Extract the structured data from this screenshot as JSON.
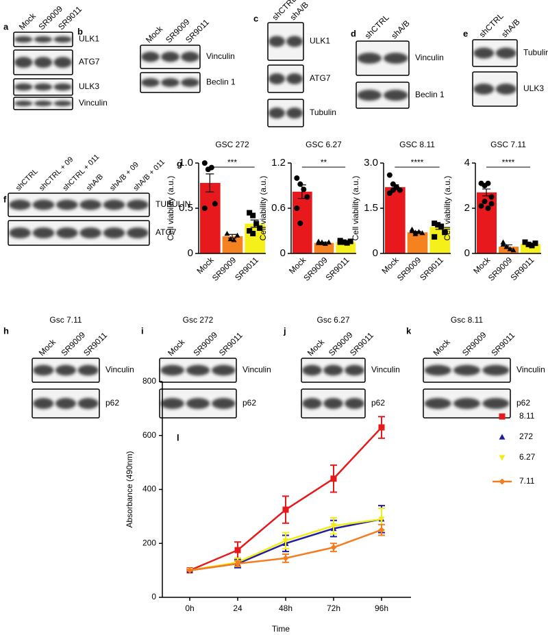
{
  "blots": [
    {
      "letter": "a",
      "lanes": [
        "Mock",
        "SR9009",
        "SR9011"
      ],
      "bands": [
        "ULK1",
        "ATG7",
        "ULK3",
        "Vinculin"
      ]
    },
    {
      "letter": "b",
      "lanes": [
        "Mock",
        "SR9009",
        "SR9011"
      ],
      "bands": [
        "Vinculin",
        "Beclin 1"
      ]
    },
    {
      "letter": "c",
      "lanes": [
        "shCTRL",
        "shA/B"
      ],
      "bands": [
        "ULK1",
        "ATG7",
        "Tubulin"
      ]
    },
    {
      "letter": "d",
      "lanes": [
        "shCTRL",
        "shA/B"
      ],
      "bands": [
        "Vinculin",
        "Beclin 1"
      ]
    },
    {
      "letter": "e",
      "lanes": [
        "shCTRL",
        "shA/B"
      ],
      "bands": [
        "Tubulin",
        "ULK3"
      ]
    },
    {
      "letter": "f",
      "lanes": [
        "shCTRL",
        "shCTRL + 09",
        "shCTRL + 011",
        "shA/B",
        "shA/B + 09",
        "shA/B + 011"
      ],
      "bands": [
        "TUBULIN",
        "ATG7"
      ]
    },
    {
      "letter": "h",
      "title": "Gsc 7.11",
      "lanes": [
        "Mock",
        "SR9009",
        "SR9011"
      ],
      "bands": [
        "Vinculin",
        "p62"
      ]
    },
    {
      "letter": "i",
      "title": "Gsc 272",
      "lanes": [
        "Mock",
        "SR9009",
        "SR9011"
      ],
      "bands": [
        "Vinculin",
        "p62"
      ]
    },
    {
      "letter": "j",
      "title": "Gsc 6.27",
      "lanes": [
        "Mock",
        "SR9009",
        "SR9011"
      ],
      "bands": [
        "Vinculin",
        "p62"
      ]
    },
    {
      "letter": "k",
      "title": "Gsc 8.11",
      "lanes": [
        "Mock",
        "SR9009",
        "SR9011"
      ],
      "bands": [
        "Vinculin",
        "p62"
      ]
    }
  ],
  "chart_data": [
    {
      "type": "bar",
      "letter": "g",
      "title": "GSC 272",
      "ylabel": "Cell viability (a.u.)",
      "categories": [
        "Mock",
        "SR9009",
        "SR9011"
      ],
      "values": [
        0.78,
        0.19,
        0.33
      ],
      "errors": [
        0.1,
        0.02,
        0.04
      ],
      "colors": [
        "#e8191c",
        "#f5821f",
        "#f5f01a"
      ],
      "points": [
        [
          1.0,
          0.93,
          0.95,
          0.55,
          0.5
        ],
        [
          0.22,
          0.16,
          0.15,
          0.2
        ],
        [
          0.45,
          0.42,
          0.33,
          0.28,
          0.25,
          0.22
        ]
      ],
      "significance": "***",
      "ylim": [
        0,
        1
      ],
      "yticks": [
        0,
        0.5,
        {
          "value": 1,
          "label": "1.0"
        }
      ]
    },
    {
      "type": "bar",
      "title": "GSC 6.27",
      "ylabel": "Cell viability (a.u.)",
      "categories": [
        "Mock",
        "SR9009",
        "SR9011"
      ],
      "values": [
        0.82,
        0.14,
        0.15
      ],
      "errors": [
        0.09,
        0.01,
        0.01
      ],
      "colors": [
        "#e8191c",
        "#f5821f",
        "#f5f01a"
      ],
      "points": [
        [
          1.0,
          0.92,
          0.85,
          0.75,
          0.6,
          0.4
        ],
        [
          0.16,
          0.14,
          0.13,
          0.15,
          0.14,
          0.15
        ],
        [
          0.17,
          0.15,
          0.14,
          0.16,
          0.15
        ]
      ],
      "significance": "**",
      "ylim": [
        0,
        1.2
      ],
      "yticks": [
        0,
        0.6,
        1.2
      ]
    },
    {
      "type": "bar",
      "title": "GSC 8.11",
      "ylabel": "Cell viability (a.u.)",
      "categories": [
        "Mock",
        "SR9009",
        "SR9011"
      ],
      "values": [
        2.2,
        0.7,
        0.88
      ],
      "errors": [
        0.08,
        0.03,
        0.08
      ],
      "colors": [
        "#e8191c",
        "#f5821f",
        "#f5f01a"
      ],
      "points": [
        [
          2.6,
          2.3,
          2.2,
          2.1,
          2.0,
          2.1,
          2.2
        ],
        [
          0.75,
          0.7,
          0.72,
          0.68,
          0.8,
          0.65
        ],
        [
          1.0,
          0.95,
          0.9,
          0.7,
          0.55
        ]
      ],
      "significance": "****",
      "ylim": [
        0,
        3
      ],
      "yticks": [
        0,
        1.5,
        {
          "value": 3,
          "label": "3.0"
        }
      ]
    },
    {
      "type": "bar",
      "title": "GSC 7.11",
      "ylabel": "Cell viability (a.u.)",
      "categories": [
        "Mock",
        "SR9009",
        "SR9011"
      ],
      "values": [
        2.7,
        0.3,
        0.42
      ],
      "errors": [
        0.15,
        0.08,
        0.04
      ],
      "colors": [
        "#e8191c",
        "#f5821f",
        "#f5f01a"
      ],
      "points": [
        [
          3.1,
          3.0,
          3.1,
          2.2,
          2.1,
          2.3,
          2.0,
          2.5
        ],
        [
          0.5,
          0.3,
          0.2,
          0.15,
          0.4
        ],
        [
          0.5,
          0.4,
          0.35,
          0.45,
          0.5
        ]
      ],
      "significance": "****",
      "ylim": [
        0,
        4
      ],
      "yticks": [
        0,
        2,
        4
      ]
    },
    {
      "type": "line",
      "letter": "l",
      "xlabel": "Time",
      "ylabel": "Absorbance (490nm)",
      "categories": [
        "0h",
        "24",
        "48h",
        "72h",
        "96h"
      ],
      "ylim": [
        0,
        800
      ],
      "yticks": [
        0,
        200,
        400,
        600,
        800
      ],
      "series": [
        {
          "name": "8.11",
          "color": "#e41a1c",
          "marker": "square",
          "values": [
            100,
            175,
            325,
            440,
            630
          ],
          "errors": [
            0,
            30,
            50,
            50,
            40
          ]
        },
        {
          "name": "272",
          "color": "#1f1f9e",
          "marker": "triangle",
          "values": [
            100,
            125,
            200,
            255,
            290
          ],
          "errors": [
            0,
            15,
            30,
            30,
            50
          ]
        },
        {
          "name": "6.27",
          "color": "#f0ec1a",
          "marker": "invtriangle",
          "values": [
            100,
            130,
            210,
            265,
            290
          ],
          "errors": [
            0,
            15,
            30,
            30,
            40
          ]
        },
        {
          "name": "7.11",
          "color": "#f57c1f",
          "marker": "diamond",
          "values": [
            100,
            125,
            145,
            185,
            250
          ],
          "errors": [
            0,
            10,
            15,
            15,
            20
          ]
        }
      ]
    }
  ]
}
